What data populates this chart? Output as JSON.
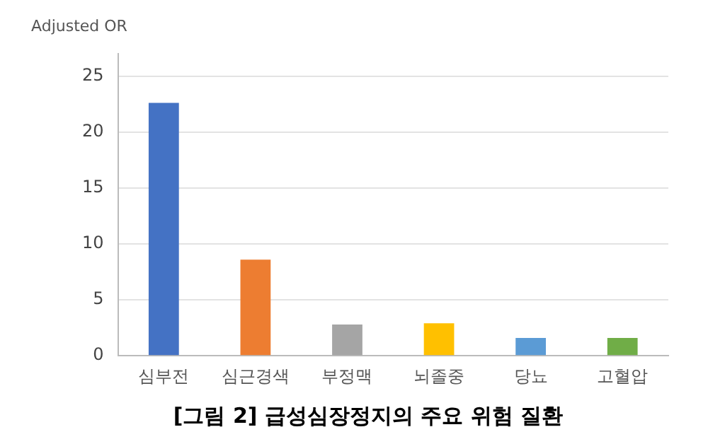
{
  "chart_data": {
    "type": "bar",
    "title": "[그림 2] 급성심장정지의 주요 위험 질환",
    "ylabel": "Adjusted OR",
    "categories": [
      "심부전",
      "심근경색",
      "부정맥",
      "뇌졸중",
      "당뇨",
      "고혈압"
    ],
    "values": [
      22.6,
      8.6,
      2.8,
      2.9,
      1.6,
      1.6
    ],
    "colors": [
      "#4472c4",
      "#ed7d31",
      "#a5a5a5",
      "#ffc000",
      "#5b9bd5",
      "#70ad47"
    ],
    "ylim": [
      0,
      27
    ],
    "yticks": [
      0,
      5,
      10,
      15,
      20,
      25
    ],
    "grid": "y"
  }
}
